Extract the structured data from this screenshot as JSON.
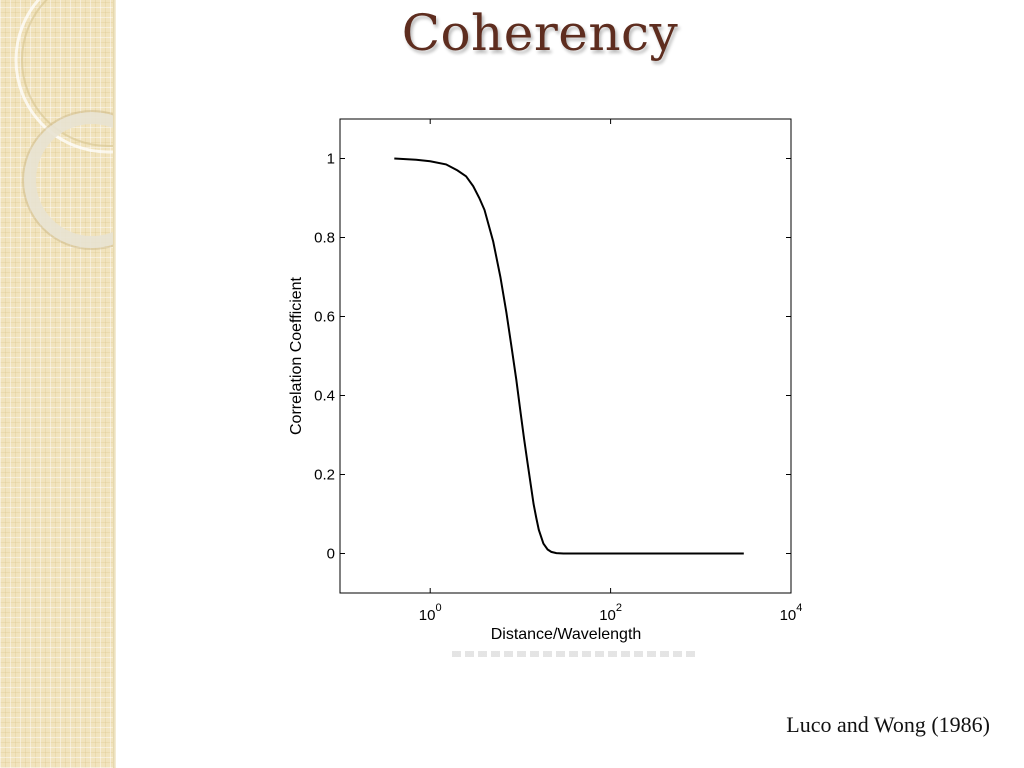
{
  "slide": {
    "title": "Coherency",
    "citation": "Luco and Wong (1986)"
  },
  "theme": {
    "title_color": "#5e2d1f",
    "sidebar_color": "#f1e3bd",
    "curve_color": "#000000"
  },
  "chart_data": {
    "type": "line",
    "title": "",
    "xlabel": "Distance/Wavelength",
    "ylabel": "Correlation Coefficient",
    "xscale": "log",
    "xlim": [
      0.1,
      10000
    ],
    "ylim": [
      -0.1,
      1.1
    ],
    "grid": false,
    "legend": "none",
    "xticks": [
      {
        "value": 1,
        "base": "10",
        "exp": "0"
      },
      {
        "value": 100,
        "base": "10",
        "exp": "2"
      },
      {
        "value": 10000,
        "base": "10",
        "exp": "4"
      }
    ],
    "yticks": [
      {
        "value": 0,
        "label": "0"
      },
      {
        "value": 0.2,
        "label": "0.2"
      },
      {
        "value": 0.4,
        "label": "0.4"
      },
      {
        "value": 0.6,
        "label": "0.6"
      },
      {
        "value": 0.8,
        "label": "0.8"
      },
      {
        "value": 1,
        "label": "1"
      }
    ],
    "series": [
      {
        "x": [
          0.4,
          0.7,
          1.0,
          1.5,
          2.0,
          2.5,
          3.0,
          3.5,
          4.0,
          5.0,
          6.0,
          7.0,
          8.0,
          9.0,
          10,
          11,
          12,
          13,
          14,
          15,
          16,
          18,
          20,
          22,
          25,
          30,
          40,
          60,
          100,
          300,
          1000,
          3000
        ],
        "y": [
          1.0,
          0.997,
          0.993,
          0.985,
          0.97,
          0.955,
          0.93,
          0.9,
          0.87,
          0.79,
          0.7,
          0.61,
          0.52,
          0.44,
          0.36,
          0.29,
          0.23,
          0.175,
          0.125,
          0.09,
          0.06,
          0.025,
          0.01,
          0.004,
          0.001,
          0,
          0,
          0,
          0,
          0,
          0,
          0
        ]
      }
    ]
  }
}
